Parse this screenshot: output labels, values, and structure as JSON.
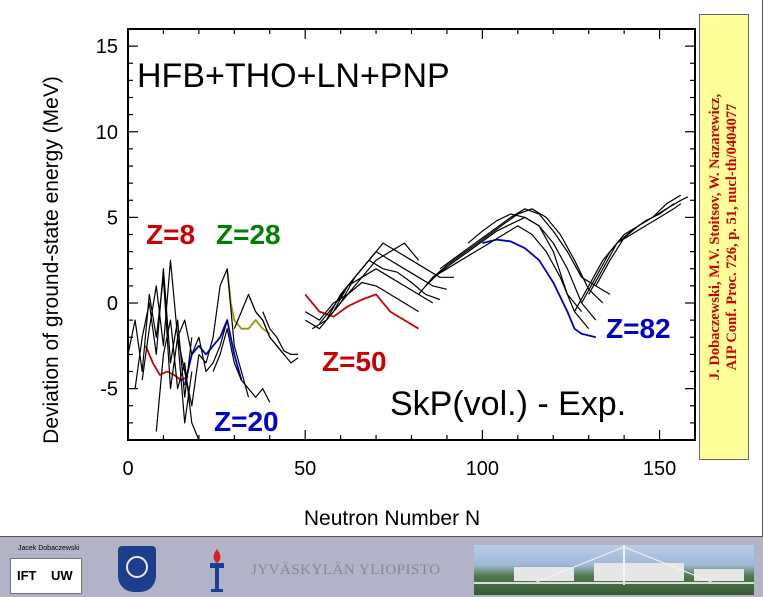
{
  "chart_data": {
    "type": "line",
    "title": "HFB+THO+LN+PNP",
    "subtitle": "SkP(vol.) - Exp.",
    "xlabel": "Neutron Number N",
    "ylabel": "Deviation of ground-state energy (MeV)",
    "xlim": [
      0,
      160
    ],
    "ylim": [
      -8,
      16
    ],
    "x_ticks": [
      0,
      50,
      100,
      150
    ],
    "y_ticks": [
      -5,
      0,
      5,
      10,
      15
    ],
    "grid": false,
    "annotations": [
      {
        "text": "Z=8",
        "color": "#cc0000"
      },
      {
        "text": "Z=28",
        "color": "#008000"
      },
      {
        "text": "Z=50",
        "color": "#cc0000"
      },
      {
        "text": "Z=20",
        "color": "#0000cc"
      },
      {
        "text": "Z=82",
        "color": "#0000cc"
      }
    ],
    "series": [
      {
        "name": "Z=8",
        "color": "#cc0000",
        "x": [
          5,
          7,
          9,
          11,
          13,
          15,
          17
        ],
        "y": [
          -2.5,
          -3.5,
          -4.2,
          -4.0,
          -4.2,
          -4.5,
          -4.3
        ]
      },
      {
        "name": "Z=20",
        "color": "#0000cc",
        "x": [
          16,
          18,
          20,
          22,
          24,
          26,
          28,
          30,
          32
        ],
        "y": [
          -4.8,
          -3.0,
          -2.5,
          -3.0,
          -2.5,
          -2.0,
          -1.0,
          -3.0,
          -4.5
        ]
      },
      {
        "name": "Z=28",
        "color": "#999900",
        "x": [
          28,
          29,
          30,
          32,
          34,
          36,
          38,
          40
        ],
        "y": [
          2.0,
          0.0,
          -1.0,
          -1.5,
          -1.5,
          -1.0,
          -1.5,
          -1.8
        ]
      },
      {
        "name": "Z=50",
        "color": "#cc0000",
        "x": [
          50,
          54,
          58,
          62,
          66,
          70,
          74,
          78,
          82
        ],
        "y": [
          0.5,
          -0.5,
          -0.8,
          -0.2,
          0.2,
          0.5,
          -0.5,
          -1.0,
          -1.5
        ]
      },
      {
        "name": "Z=82",
        "color": "#0000cc",
        "x": [
          100,
          104,
          108,
          112,
          116,
          120,
          124,
          126,
          128,
          132
        ],
        "y": [
          3.5,
          3.7,
          3.6,
          3.2,
          2.5,
          1.2,
          -0.5,
          -1.5,
          -1.8,
          -2.0
        ]
      },
      {
        "name": "",
        "color": "#000000",
        "x": [
          0,
          2,
          4,
          6,
          8,
          10,
          12,
          14,
          16,
          18,
          20
        ],
        "y": [
          -3.0,
          -1.0,
          -4.0,
          0.5,
          -2.0,
          1.5,
          -5.0,
          -2.0,
          -4.0,
          -6.0,
          -3.0
        ]
      },
      {
        "name": "",
        "color": "#000000",
        "x": [
          2,
          4,
          6,
          8,
          10,
          12,
          14,
          16,
          18
        ],
        "y": [
          -5.0,
          -2.0,
          0.0,
          -3.0,
          2.0,
          -3.5,
          -1.0,
          -5.5,
          -2.0
        ]
      },
      {
        "name": "",
        "color": "#000000",
        "x": [
          4,
          6,
          8,
          10,
          12,
          14,
          16,
          18
        ],
        "y": [
          -4.5,
          -1.5,
          1.0,
          -2.5,
          2.5,
          -2.0,
          -7.0,
          -4.0
        ]
      },
      {
        "name": "",
        "color": "#000000",
        "x": [
          8,
          10,
          12,
          14,
          16,
          18,
          20
        ],
        "y": [
          -7.5,
          -3.0,
          -1.0,
          -5.0,
          -3.5,
          -7.0,
          -8.0
        ]
      },
      {
        "name": "",
        "color": "#000000",
        "x": [
          14,
          16,
          18,
          20,
          22,
          24,
          26,
          28
        ],
        "y": [
          -2.0,
          -1.0,
          -3.0,
          -2.0,
          -4.0,
          -3.5,
          -2.5,
          -1.0
        ]
      },
      {
        "name": "",
        "color": "#000000",
        "x": [
          20,
          22,
          24,
          26,
          28,
          30,
          32,
          34
        ],
        "y": [
          -3.0,
          -3.5,
          -2.0,
          1.0,
          2.0,
          -2.5,
          -4.0,
          -5.5
        ]
      },
      {
        "name": "",
        "color": "#000000",
        "x": [
          24,
          26,
          28,
          30,
          32,
          34,
          36,
          38,
          40
        ],
        "y": [
          -4.0,
          -3.0,
          -1.5,
          -3.5,
          -4.5,
          -5.0,
          -5.5,
          -5.0,
          -5.8
        ]
      },
      {
        "name": "",
        "color": "#000000",
        "x": [
          30,
          32,
          34,
          36,
          38,
          40,
          42,
          44
        ],
        "y": [
          -1.5,
          -0.5,
          0.5,
          -0.5,
          -1.0,
          -2.0,
          -2.5,
          -3.0
        ]
      },
      {
        "name": "",
        "color": "#000000",
        "x": [
          34,
          36,
          38,
          40,
          42,
          44,
          46,
          48
        ],
        "y": [
          0.5,
          -0.5,
          -1.0,
          -2.0,
          -2.5,
          -3.0,
          -3.5,
          -3.2
        ]
      },
      {
        "name": "",
        "color": "#000000",
        "x": [
          38,
          40,
          42,
          44,
          46,
          48
        ],
        "y": [
          -0.5,
          -1.5,
          -2.0,
          -2.8,
          -3.0,
          -3.0
        ]
      },
      {
        "name": "",
        "color": "#000000",
        "x": [
          50,
          54,
          58,
          62,
          66,
          70,
          74,
          78,
          82,
          86
        ],
        "y": [
          -1.0,
          -1.5,
          -0.5,
          1.0,
          1.5,
          2.0,
          1.5,
          1.0,
          0.5,
          0.0
        ]
      },
      {
        "name": "",
        "color": "#000000",
        "x": [
          50,
          54,
          58,
          62,
          66,
          70,
          74,
          78,
          82
        ],
        "y": [
          -0.5,
          -1.0,
          0.0,
          0.5,
          1.2,
          1.0,
          0.5,
          0.0,
          -0.5
        ]
      },
      {
        "name": "",
        "color": "#000000",
        "x": [
          52,
          56,
          60,
          64,
          68,
          72,
          76,
          80,
          84,
          88
        ],
        "y": [
          -1.5,
          -1.0,
          0.5,
          1.5,
          2.5,
          2.0,
          1.8,
          1.2,
          0.5,
          0.2
        ]
      },
      {
        "name": "",
        "color": "#000000",
        "x": [
          54,
          58,
          62,
          66,
          70,
          74,
          78,
          82,
          86,
          90
        ],
        "y": [
          -1.2,
          -0.2,
          1.0,
          2.0,
          3.0,
          2.5,
          2.0,
          1.5,
          1.0,
          0.8
        ]
      },
      {
        "name": "",
        "color": "#000000",
        "x": [
          56,
          60,
          64,
          68,
          72,
          76,
          80,
          84,
          88,
          92
        ],
        "y": [
          -1.0,
          0.0,
          1.5,
          2.5,
          3.5,
          3.0,
          2.5,
          2.0,
          1.5,
          1.5
        ]
      },
      {
        "name": "",
        "color": "#000000",
        "x": [
          58,
          62,
          66,
          70,
          74,
          78,
          82
        ],
        "y": [
          -0.5,
          0.5,
          1.5,
          2.5,
          3.0,
          3.5,
          2.5
        ]
      },
      {
        "name": "",
        "color": "#000000",
        "x": [
          82,
          86,
          90,
          94,
          98,
          102,
          106,
          110,
          114,
          118,
          122,
          126,
          130
        ],
        "y": [
          0.5,
          1.5,
          2.0,
          2.5,
          3.0,
          3.5,
          4.0,
          4.5,
          4.0,
          3.0,
          1.5,
          -0.5,
          -1.5
        ]
      },
      {
        "name": "",
        "color": "#000000",
        "x": [
          84,
          88,
          92,
          96,
          100,
          104,
          108,
          112,
          116,
          120,
          124,
          128,
          132
        ],
        "y": [
          1.0,
          1.8,
          2.4,
          3.0,
          3.6,
          4.2,
          4.6,
          5.0,
          4.5,
          3.5,
          2.0,
          0.0,
          -1.0
        ]
      },
      {
        "name": "",
        "color": "#000000",
        "x": [
          86,
          90,
          94,
          98,
          102,
          106,
          110,
          114,
          118,
          122,
          126,
          130,
          134
        ],
        "y": [
          1.5,
          2.2,
          2.8,
          3.4,
          4.0,
          4.6,
          5.2,
          5.5,
          5.0,
          4.0,
          2.5,
          0.8,
          0.0
        ]
      },
      {
        "name": "",
        "color": "#000000",
        "x": [
          88,
          92,
          96,
          100,
          104,
          108,
          112,
          116,
          120,
          124,
          128,
          132,
          136
        ],
        "y": [
          2.0,
          2.6,
          3.2,
          3.8,
          4.4,
          5.0,
          5.5,
          5.2,
          4.2,
          3.0,
          1.5,
          1.0,
          0.5
        ]
      },
      {
        "name": "",
        "color": "#000000",
        "x": [
          96,
          100,
          104,
          108,
          112,
          116,
          120,
          124,
          128
        ],
        "y": [
          3.5,
          4.2,
          4.8,
          5.2,
          5.0,
          4.5,
          3.0,
          0.5,
          -0.5
        ]
      },
      {
        "name": "",
        "color": "#000000",
        "x": [
          126,
          130,
          134,
          138,
          142,
          146,
          150,
          154,
          156
        ],
        "y": [
          -0.5,
          1.0,
          2.5,
          3.5,
          4.0,
          4.5,
          5.0,
          5.5,
          5.8
        ]
      },
      {
        "name": "",
        "color": "#000000",
        "x": [
          128,
          132,
          136,
          140,
          144,
          148,
          152,
          156
        ],
        "y": [
          0.0,
          1.5,
          3.0,
          4.0,
          4.5,
          5.0,
          5.8,
          6.3
        ]
      },
      {
        "name": "",
        "color": "#000000",
        "x": [
          130,
          134,
          138,
          142,
          146,
          150,
          154
        ],
        "y": [
          0.5,
          2.0,
          3.5,
          4.2,
          4.8,
          5.2,
          5.8
        ]
      },
      {
        "name": "",
        "color": "#000000",
        "x": [
          132,
          136,
          140,
          144,
          148,
          152,
          156,
          158
        ],
        "y": [
          1.0,
          2.5,
          3.8,
          4.5,
          5.0,
          5.5,
          6.0,
          6.2
        ]
      }
    ]
  },
  "citation": {
    "line1": "J. Dobaczewski, M.V. Stoitsov, W. Nazarewicz,",
    "line2": "AIP Conf. Proc. 726, p. 51, nucl-th/0404077"
  },
  "footer": {
    "credit": "Jacek Dobaczewski",
    "ift_logo": "IFT",
    "uw_logo": "UW",
    "university_name": "JYVÄSKYLÄN YLIOPISTO"
  }
}
